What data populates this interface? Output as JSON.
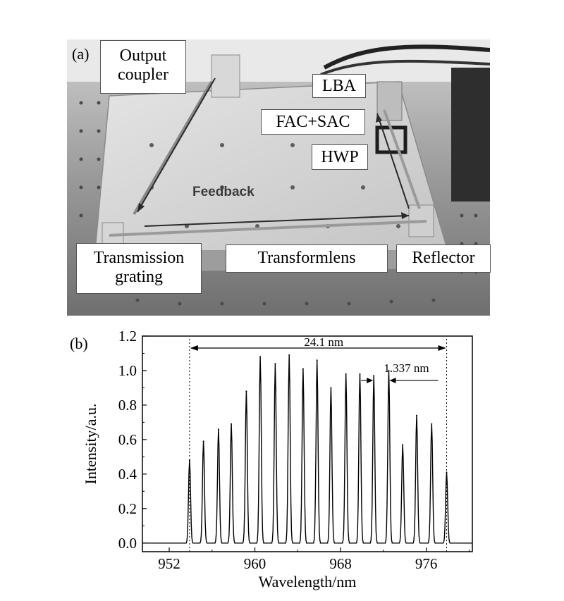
{
  "panel_a": {
    "label": "(a)",
    "labels": {
      "output_coupler": "Output coupler",
      "lba": "LBA",
      "fac_sac": "FAC+SAC",
      "hwp": "HWP",
      "feedback": "Feedback",
      "transmission_grating": "Transmission grating",
      "transformlens": "Transformlens",
      "reflector": "Reflector"
    }
  },
  "chart_data": {
    "type": "line",
    "panel_label": "(b)",
    "xlabel": "Wavelength/nm",
    "ylabel": "Intensity/a.u.",
    "xlim": [
      949.5,
      980.3
    ],
    "ylim": [
      -0.05,
      1.2
    ],
    "xticks": [
      952,
      960,
      968,
      976
    ],
    "yticks": [
      0.0,
      0.2,
      0.4,
      0.6,
      0.8,
      1.0,
      1.2
    ],
    "ytick_labels": [
      "0.0",
      "0.2",
      "0.4",
      "0.6",
      "0.8",
      "1.0",
      "1.2"
    ],
    "grid": false,
    "peaks": {
      "x": [
        953.9,
        955.2,
        956.6,
        957.8,
        959.2,
        960.5,
        961.9,
        963.2,
        964.5,
        965.8,
        967.1,
        968.5,
        969.8,
        971.1,
        972.5,
        973.8,
        975.1,
        976.5,
        977.9
      ],
      "y": [
        0.48,
        0.59,
        0.66,
        0.69,
        0.88,
        1.08,
        1.04,
        1.09,
        1.01,
        1.06,
        0.9,
        0.98,
        0.98,
        0.97,
        1.0,
        0.57,
        0.74,
        0.69,
        0.41
      ]
    },
    "annotations": {
      "span_text": "24.1 nm",
      "span_from": 953.9,
      "span_to": 977.9,
      "spacing_text": "1.337 nm",
      "spacing_from": 971.1,
      "spacing_to": 972.5
    }
  }
}
